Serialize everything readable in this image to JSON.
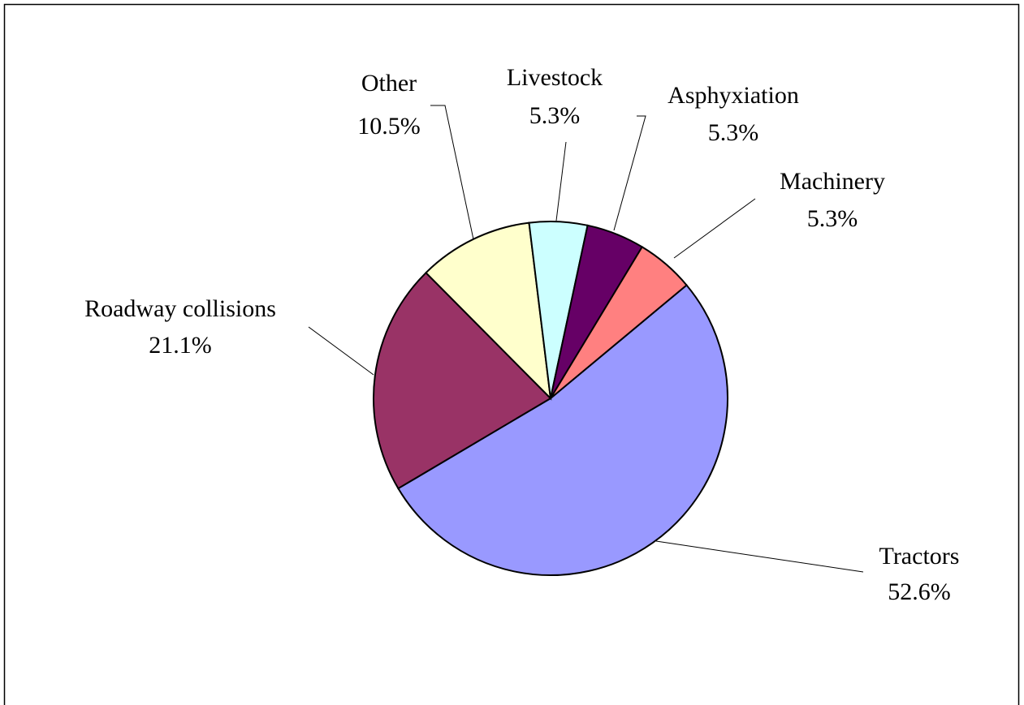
{
  "chart_data": {
    "type": "pie",
    "categories": [
      "Tractors",
      "Roadway collisions",
      "Other",
      "Livestock",
      "Asphyxiation",
      "Machinery"
    ],
    "values": [
      52.6,
      21.1,
      10.5,
      5.3,
      5.3,
      5.3
    ],
    "value_labels": [
      "52.6%",
      "21.1%",
      "10.5%",
      "5.3%",
      "5.3%",
      "5.3%"
    ],
    "colors": [
      "#9999ff",
      "#993366",
      "#ffffcc",
      "#ccffff",
      "#660066",
      "#ff8080"
    ]
  }
}
